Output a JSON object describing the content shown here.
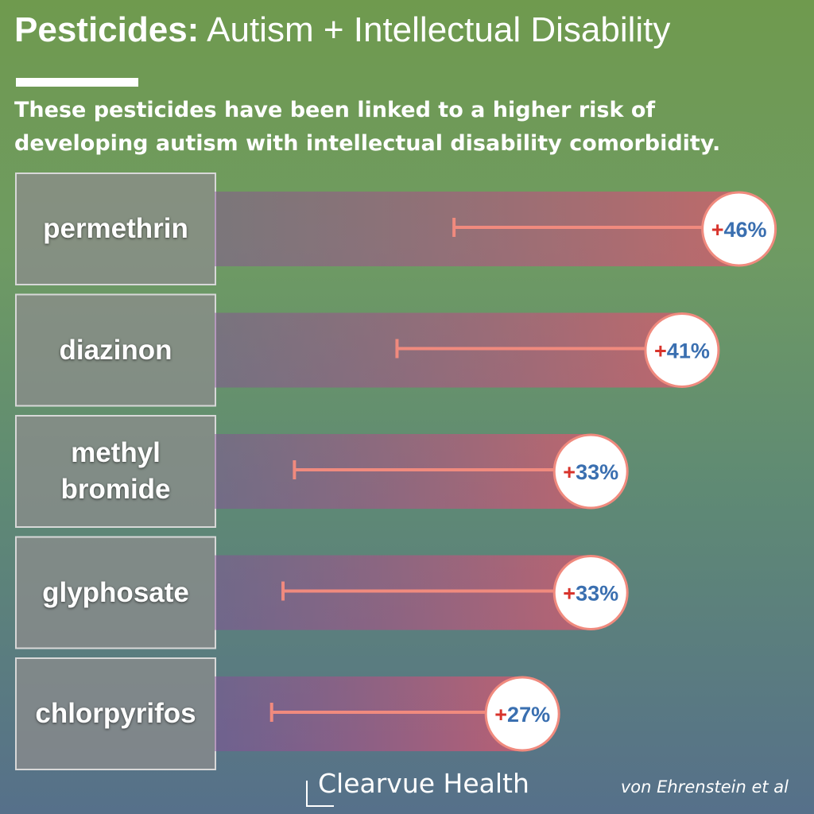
{
  "title": "Pesticides: Autism + Intellectual Disability",
  "subtitle": "These pesticides have been linked to a higher risk of developing autism with intellectual disability comorbidity.",
  "brand": "Clearvue Health",
  "source": "von Ehrenstein et al",
  "chart_data": {
    "type": "bar",
    "orientation": "horizontal",
    "categories": [
      "permethrin",
      "diazinon",
      "methyl bromide",
      "glyphosate",
      "chlorpyrifos"
    ],
    "values": [
      46,
      41,
      33,
      33,
      27
    ],
    "value_labels": [
      "+46%",
      "+41%",
      "+33%",
      "+33%",
      "+27%"
    ],
    "lower": [
      21,
      16,
      7,
      6,
      5
    ],
    "xlim": [
      0,
      50
    ],
    "color": "#f08a7e"
  }
}
